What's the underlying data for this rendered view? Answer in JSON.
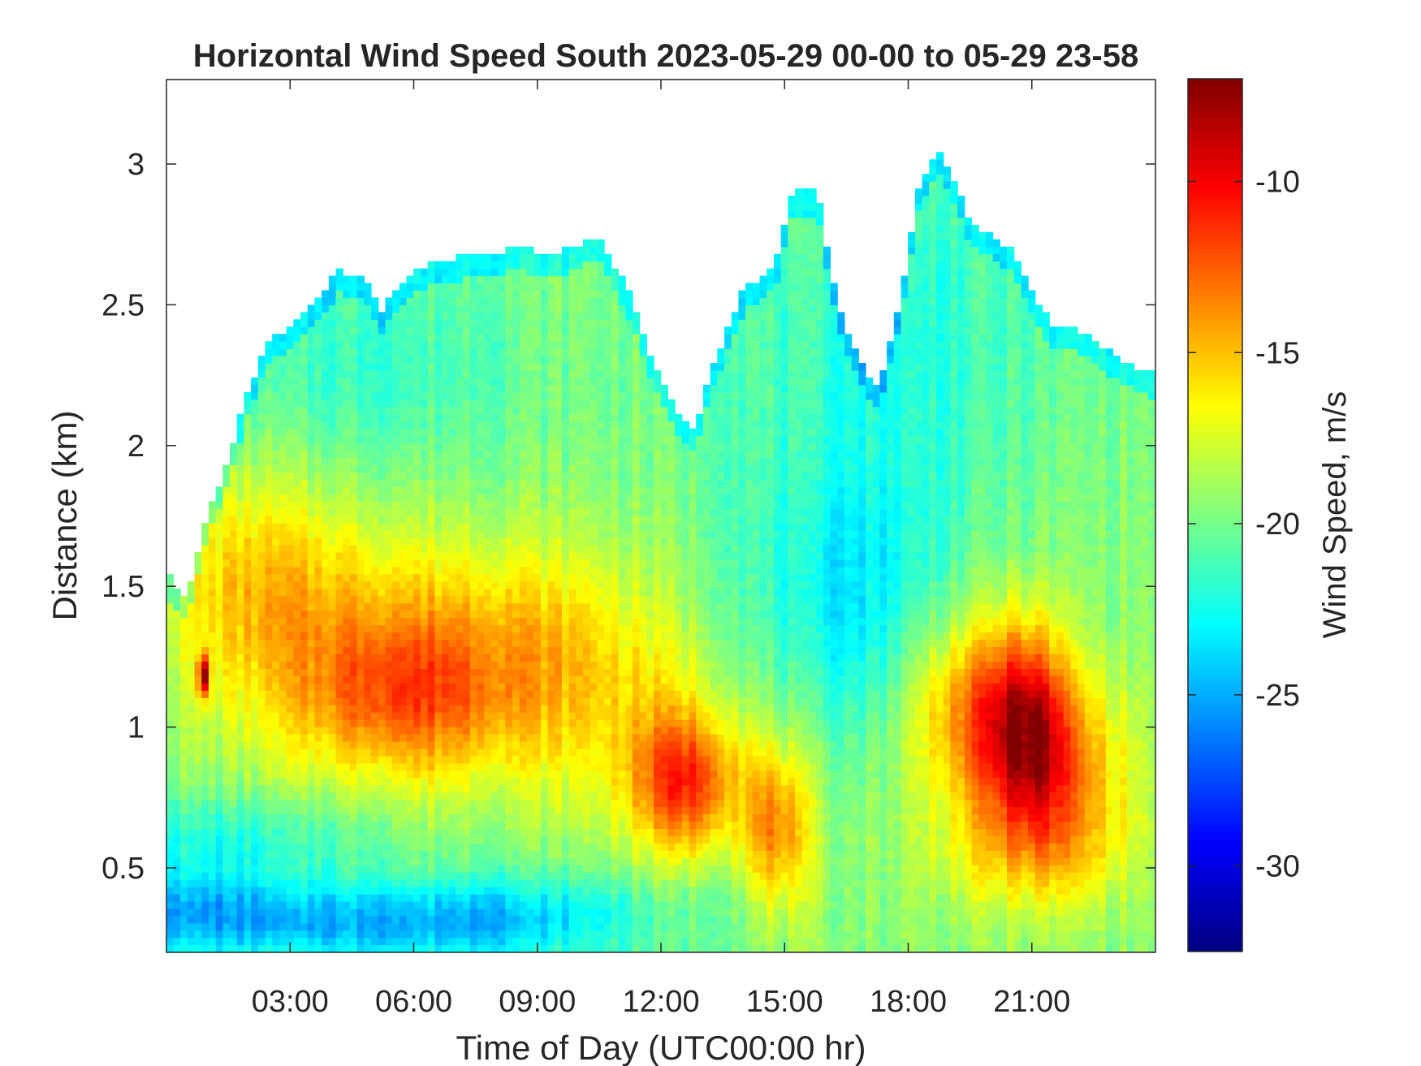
{
  "chart_data": {
    "type": "heatmap",
    "title": "Horizontal Wind Speed South 2023-05-29 00-00 to 05-29 23-58",
    "xlabel": "Time of Day (UTC00:00 hr)",
    "ylabel": "Distance (km)",
    "colorbar_label": "Wind Speed, m/s",
    "colormap": "jet",
    "xlim": [
      0,
      24
    ],
    "ylim": [
      0.2,
      3.3
    ],
    "clim": [
      -32.5,
      -7
    ],
    "x_ticks": [
      {
        "value": 3,
        "label": "03:00"
      },
      {
        "value": 6,
        "label": "06:00"
      },
      {
        "value": 9,
        "label": "09:00"
      },
      {
        "value": 12,
        "label": "12:00"
      },
      {
        "value": 15,
        "label": "15:00"
      },
      {
        "value": 18,
        "label": "18:00"
      },
      {
        "value": 21,
        "label": "21:00"
      }
    ],
    "y_ticks": [
      {
        "value": 0.5,
        "label": "0.5"
      },
      {
        "value": 1,
        "label": "1"
      },
      {
        "value": 1.5,
        "label": "1.5"
      },
      {
        "value": 2,
        "label": "2"
      },
      {
        "value": 2.5,
        "label": "2.5"
      },
      {
        "value": 3,
        "label": "3"
      }
    ],
    "colorbar_ticks": [
      {
        "value": -10,
        "label": "-10"
      },
      {
        "value": -15,
        "label": "-15"
      },
      {
        "value": -20,
        "label": "-20"
      },
      {
        "value": -25,
        "label": "-25"
      },
      {
        "value": -30,
        "label": "-30"
      }
    ],
    "data_top_km": [
      [
        0,
        1.55
      ],
      [
        0.5,
        1.45
      ],
      [
        0.7,
        1.58
      ],
      [
        1.0,
        1.75
      ],
      [
        1.5,
        1.95
      ],
      [
        2.0,
        2.2
      ],
      [
        2.5,
        2.38
      ],
      [
        3.0,
        2.42
      ],
      [
        3.5,
        2.5
      ],
      [
        4.2,
        2.62
      ],
      [
        4.8,
        2.6
      ],
      [
        5.2,
        2.48
      ],
      [
        5.8,
        2.6
      ],
      [
        6.5,
        2.65
      ],
      [
        7.5,
        2.68
      ],
      [
        8.5,
        2.7
      ],
      [
        9.5,
        2.68
      ],
      [
        10.5,
        2.75
      ],
      [
        11.2,
        2.55
      ],
      [
        11.8,
        2.3
      ],
      [
        12.3,
        2.15
      ],
      [
        12.8,
        2.05
      ],
      [
        13.3,
        2.3
      ],
      [
        14.0,
        2.55
      ],
      [
        14.8,
        2.65
      ],
      [
        15.2,
        2.9
      ],
      [
        15.8,
        2.9
      ],
      [
        16.3,
        2.5
      ],
      [
        16.8,
        2.3
      ],
      [
        17.3,
        2.2
      ],
      [
        17.8,
        2.5
      ],
      [
        18.3,
        2.95
      ],
      [
        18.8,
        3.05
      ],
      [
        19.5,
        2.8
      ],
      [
        20.0,
        2.75
      ],
      [
        20.5,
        2.7
      ],
      [
        21.0,
        2.55
      ],
      [
        21.5,
        2.42
      ],
      [
        22.0,
        2.42
      ],
      [
        22.5,
        2.38
      ],
      [
        23.0,
        2.32
      ],
      [
        23.5,
        2.28
      ],
      [
        24,
        2.25
      ]
    ],
    "wind_speed_field": {
      "background": -19.5,
      "features": [
        {
          "time": 0.6,
          "distance": 0.35,
          "sigma_time": 2.2,
          "sigma_distance": 0.12,
          "delta": -4.5
        },
        {
          "time": 5.0,
          "distance": 0.3,
          "sigma_time": 3.0,
          "sigma_distance": 0.1,
          "delta": -4.0
        },
        {
          "time": 9.0,
          "distance": 0.33,
          "sigma_time": 2.5,
          "sigma_distance": 0.12,
          "delta": -3.0
        },
        {
          "time": 1.5,
          "distance": 0.62,
          "sigma_time": 2.5,
          "sigma_distance": 0.1,
          "delta": -2.5
        },
        {
          "time": 2.0,
          "distance": 1.55,
          "sigma_time": 1.8,
          "sigma_distance": 0.28,
          "delta": 3.0
        },
        {
          "time": 5.0,
          "distance": 1.3,
          "sigma_time": 2.8,
          "sigma_distance": 0.3,
          "delta": 3.5
        },
        {
          "time": 5.5,
          "distance": 1.12,
          "sigma_time": 1.6,
          "sigma_distance": 0.18,
          "delta": 3.0
        },
        {
          "time": 9.0,
          "distance": 1.3,
          "sigma_time": 2.2,
          "sigma_distance": 0.25,
          "delta": 3.0
        },
        {
          "time": 7.0,
          "distance": 1.0,
          "sigma_time": 2.5,
          "sigma_distance": 0.2,
          "delta": 2.0
        },
        {
          "time": 12.6,
          "distance": 0.8,
          "sigma_time": 0.9,
          "sigma_distance": 0.17,
          "delta": 7.0
        },
        {
          "time": 12.0,
          "distance": 0.95,
          "sigma_time": 1.8,
          "sigma_distance": 0.3,
          "delta": 2.0
        },
        {
          "time": 14.8,
          "distance": 0.65,
          "sigma_time": 0.6,
          "sigma_distance": 0.2,
          "delta": 5.5
        },
        {
          "time": 19.5,
          "distance": 1.05,
          "sigma_time": 1.1,
          "sigma_distance": 0.25,
          "delta": 6.0
        },
        {
          "time": 20.9,
          "distance": 1.0,
          "sigma_time": 0.7,
          "sigma_distance": 0.25,
          "delta": 7.5
        },
        {
          "time": 21.8,
          "distance": 0.85,
          "sigma_time": 1.2,
          "sigma_distance": 0.25,
          "delta": 5.0
        },
        {
          "time": 21.0,
          "distance": 0.55,
          "sigma_time": 1.8,
          "sigma_distance": 0.15,
          "delta": 2.5
        },
        {
          "time": 16.5,
          "distance": 1.45,
          "sigma_time": 1.8,
          "sigma_distance": 0.35,
          "delta": -3.5
        },
        {
          "time": 17.5,
          "distance": 2.4,
          "sigma_time": 3.0,
          "sigma_distance": 0.5,
          "delta": -2.5
        },
        {
          "time": 4.5,
          "distance": 2.3,
          "sigma_time": 3.0,
          "sigma_distance": 0.3,
          "delta": -2.0
        },
        {
          "time": 0.9,
          "distance": 1.18,
          "sigma_time": 0.08,
          "sigma_distance": 0.05,
          "delta": 12.0
        }
      ]
    }
  }
}
